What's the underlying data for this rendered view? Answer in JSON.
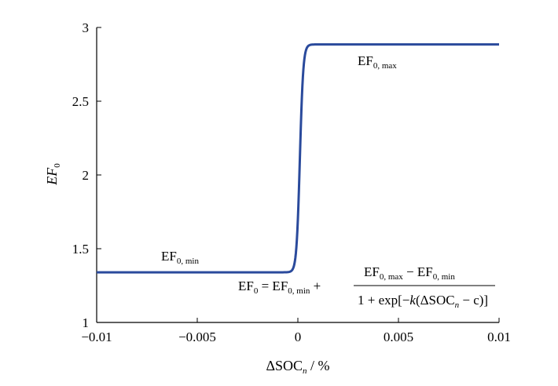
{
  "chart_data": {
    "type": "line",
    "xlabel": {
      "base": "ΔSOC",
      "sub": "n",
      "suffix": " / %"
    },
    "ylabel": {
      "base": "EF",
      "sub": "0"
    },
    "xlim": [
      -0.01,
      0.01
    ],
    "ylim": [
      1,
      3
    ],
    "xticks": [
      -0.01,
      -0.005,
      0,
      0.005,
      0.01
    ],
    "xtick_labels": [
      "−0.01",
      "−0.005",
      "0",
      "0.005",
      "0.01"
    ],
    "yticks": [
      1,
      1.5,
      2,
      2.5,
      3
    ],
    "ytick_labels": [
      "1",
      "1.5",
      "2",
      "2.5",
      "3"
    ],
    "grid": false,
    "series": [
      {
        "color": "#2a4a9c",
        "model": {
          "form": "logistic",
          "min": 1.34,
          "max": 2.885,
          "k": 12000,
          "c": 0.0001
        }
      }
    ],
    "annotations": [
      {
        "id": "max",
        "text": "EF",
        "sub": "0, max",
        "x": 0.003,
        "y": 2.75
      },
      {
        "id": "min",
        "text": "EF",
        "sub": "0, min",
        "x": -0.0067,
        "y": 1.4
      }
    ],
    "formula": {
      "lhs": "EF",
      "lhs_sub": "0",
      "eq": " = EF",
      "eq_sub": "0, min",
      "plus": " +",
      "numerator": {
        "a": "EF",
        "a_sub": "0, max",
        "minus": " − EF",
        "b_sub": "0, min"
      },
      "denominator": {
        "pre": "1 + exp[−",
        "k": "k",
        "mid": "(ΔSOC",
        "n": "n",
        "post": " − c)]"
      }
    }
  }
}
